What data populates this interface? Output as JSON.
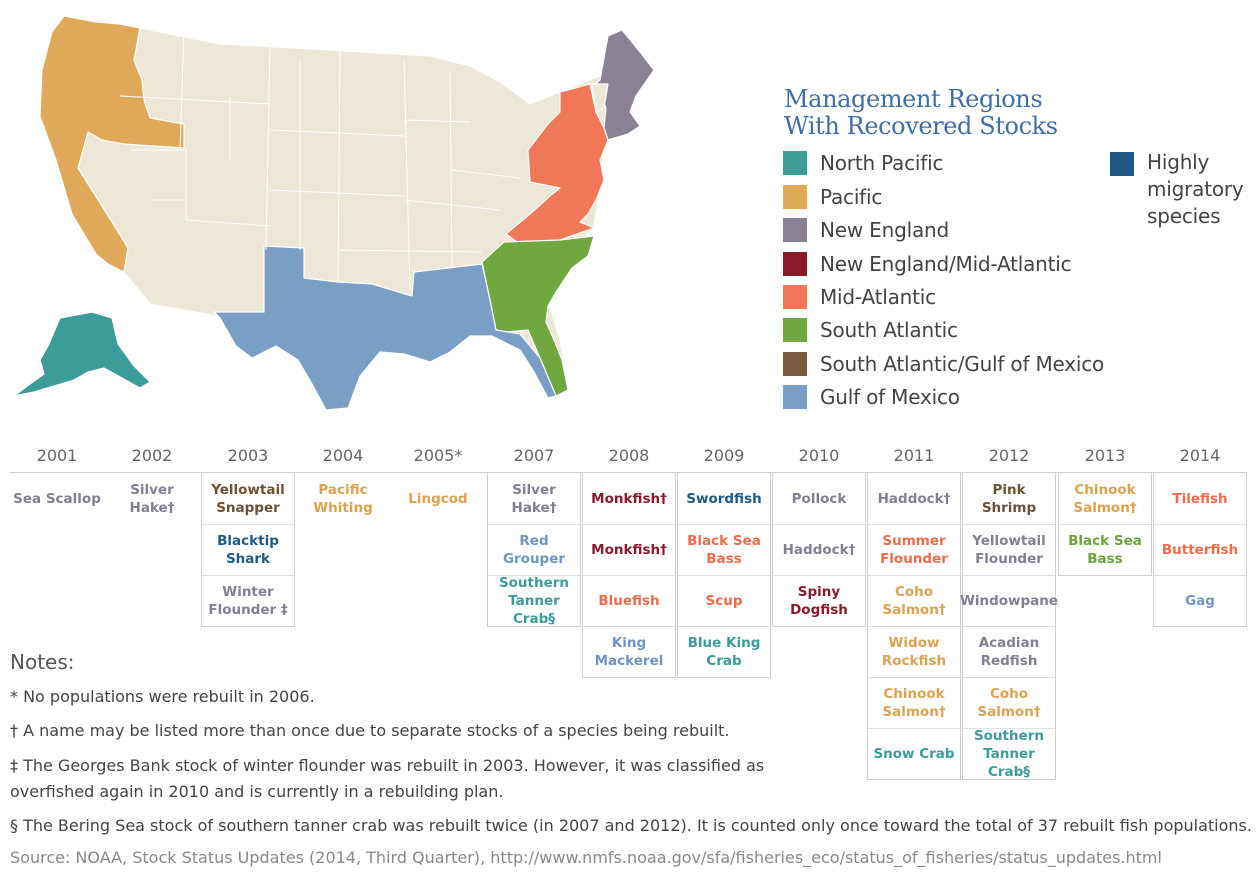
{
  "legend": {
    "title_line1": "Management Regions",
    "title_line2": "With Recovered Stocks",
    "items": [
      {
        "label": "North Pacific",
        "color": "#3c9c99"
      },
      {
        "label": "Pacific",
        "color": "#e0a95a"
      },
      {
        "label": "New England",
        "color": "#8a8195"
      },
      {
        "label": "New England/Mid-Atlantic",
        "color": "#8b1a2b"
      },
      {
        "label": "Mid-Atlantic",
        "color": "#f07858"
      },
      {
        "label": "South Atlantic",
        "color": "#6fa83f"
      },
      {
        "label": "South Atlantic/Gulf of Mexico",
        "color": "#7a5a3c"
      },
      {
        "label": "Gulf of Mexico",
        "color": "#7a9fc4"
      }
    ],
    "highly_migratory": {
      "label": "Highly migratory species",
      "color": "#1f5a86"
    }
  },
  "colors": {
    "land": "#ede7d8",
    "north_pacific": "#3c9c99",
    "pacific": "#e0a95a",
    "new_england": "#8a8195",
    "ne_mid_atlantic": "#8b1a2b",
    "mid_atlantic": "#f07858",
    "south_atlantic": "#6fa83f",
    "sa_gulf": "#7a5a3c",
    "gulf": "#7a9fc4",
    "highly_migratory": "#1f5a86"
  },
  "timeline": [
    {
      "year": "2001",
      "stocks": [
        {
          "name": "Sea Scallop",
          "region": "new_england"
        }
      ]
    },
    {
      "year": "2002",
      "stocks": [
        {
          "name": "Silver Hake†",
          "region": "new_england"
        }
      ]
    },
    {
      "year": "2003",
      "stocks": [
        {
          "name": "Yellowtail Snapper",
          "region": "sa_gulf"
        },
        {
          "name": "Blacktip Shark",
          "region": "highly_migratory"
        },
        {
          "name": "Winter Flounder ‡",
          "region": "new_england"
        }
      ]
    },
    {
      "year": "2004",
      "stocks": [
        {
          "name": "Pacific Whiting",
          "region": "pacific"
        }
      ]
    },
    {
      "year": "2005*",
      "stocks": [
        {
          "name": "Lingcod",
          "region": "pacific"
        }
      ]
    },
    {
      "year": "2007",
      "stocks": [
        {
          "name": "Silver Hake†",
          "region": "new_england"
        },
        {
          "name": "Red Grouper",
          "region": "gulf"
        },
        {
          "name": "Southern Tanner Crab§",
          "region": "north_pacific"
        }
      ]
    },
    {
      "year": "2008",
      "stocks": [
        {
          "name": "Monkfish†",
          "region": "ne_mid_atlantic"
        },
        {
          "name": "Monkfish†",
          "region": "ne_mid_atlantic"
        },
        {
          "name": "Bluefish",
          "region": "mid_atlantic"
        },
        {
          "name": "King Mackerel",
          "region": "gulf"
        }
      ]
    },
    {
      "year": "2009",
      "stocks": [
        {
          "name": "Swordfish",
          "region": "highly_migratory"
        },
        {
          "name": "Black Sea Bass",
          "region": "mid_atlantic"
        },
        {
          "name": "Scup",
          "region": "mid_atlantic"
        },
        {
          "name": "Blue King Crab",
          "region": "north_pacific"
        }
      ]
    },
    {
      "year": "2010",
      "stocks": [
        {
          "name": "Pollock",
          "region": "new_england"
        },
        {
          "name": "Haddock†",
          "region": "new_england"
        },
        {
          "name": "Spiny Dogfish",
          "region": "ne_mid_atlantic"
        }
      ]
    },
    {
      "year": "2011",
      "stocks": [
        {
          "name": "Haddock†",
          "region": "new_england"
        },
        {
          "name": "Summer Flounder",
          "region": "mid_atlantic"
        },
        {
          "name": "Coho Salmon†",
          "region": "pacific"
        },
        {
          "name": "Widow Rockfish",
          "region": "pacific"
        },
        {
          "name": "Chinook Salmon†",
          "region": "pacific"
        },
        {
          "name": "Snow Crab",
          "region": "north_pacific"
        }
      ]
    },
    {
      "year": "2012",
      "stocks": [
        {
          "name": "Pink Shrimp",
          "region": "sa_gulf"
        },
        {
          "name": "Yellowtail Flounder",
          "region": "new_england"
        },
        {
          "name": "Windowpane",
          "region": "new_england"
        },
        {
          "name": "Acadian Redfish",
          "region": "new_england"
        },
        {
          "name": "Coho Salmon†",
          "region": "pacific"
        },
        {
          "name": "Southern Tanner Crab§",
          "region": "north_pacific"
        }
      ]
    },
    {
      "year": "2013",
      "stocks": [
        {
          "name": "Chinook Salmon†",
          "region": "pacific"
        },
        {
          "name": "Black Sea Bass",
          "region": "south_atlantic"
        }
      ]
    },
    {
      "year": "2014",
      "stocks": [
        {
          "name": "Tilefish",
          "region": "mid_atlantic"
        },
        {
          "name": "Butterfish",
          "region": "mid_atlantic"
        },
        {
          "name": "Gag",
          "region": "gulf"
        }
      ]
    }
  ],
  "notes": {
    "heading": "Notes:",
    "asterisk": "* No populations were rebuilt in 2006.",
    "dagger": "† A name may be listed more than once due to separate stocks of a species being rebuilt.",
    "double_dagger": "‡ The Georges Bank stock of winter flounder was rebuilt in 2003. However, it was classified as overfished again in 2010 and is currently in a rebuilding plan.",
    "section": "§ The Bering Sea stock of southern tanner crab was rebuilt twice (in 2007 and 2012). It is counted only once toward the total of 37 rebuilt fish populations."
  },
  "source": "Source: NOAA, Stock Status Updates (2014, Third Quarter), http://www.nmfs.noaa.gov/sfa/fisheries_eco/status_of_fisheries/status_updates.html"
}
